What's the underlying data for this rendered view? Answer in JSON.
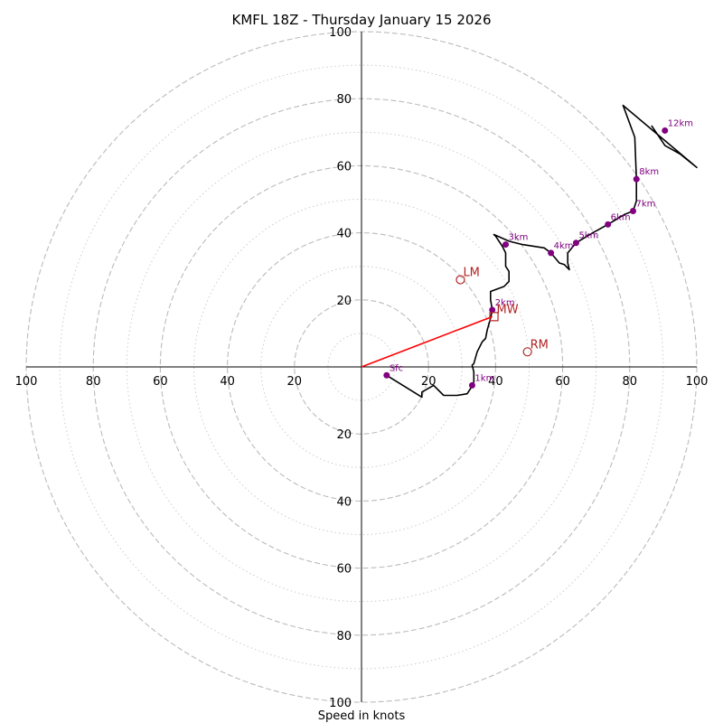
{
  "chart_data": {
    "type": "hodograph",
    "title": "KMFL 18Z - Thursday January 15 2026",
    "xlabel": "Speed in knots",
    "axis_range": [
      -100,
      100
    ],
    "ring_major": [
      20,
      40,
      60,
      80,
      100
    ],
    "ring_minor": [
      10,
      30,
      50,
      70,
      90
    ],
    "tick_labels": {
      "x_right": [
        "20",
        "40",
        "60",
        "80",
        "100"
      ],
      "x_left": [
        "100",
        "80",
        "60",
        "40",
        "20"
      ],
      "y_up": [
        "20",
        "40",
        "60",
        "80",
        "100"
      ],
      "y_down": [
        "20",
        "40",
        "60",
        "80",
        "100"
      ]
    },
    "colors": {
      "trace": "#000000",
      "height_marker": "#800080",
      "motion_marker": "#b22222",
      "shear_vector": "#ff0000",
      "grid": "#bbbbbb"
    },
    "wind_trace": [
      [
        7.5,
        -2.5
      ],
      [
        18,
        -9
      ],
      [
        18,
        -7.5
      ],
      [
        21.5,
        -5.5
      ],
      [
        24.5,
        -8.5
      ],
      [
        28.5,
        -8.5
      ],
      [
        31.5,
        -8
      ],
      [
        32.5,
        -6.5
      ],
      [
        33.5,
        -4.5
      ],
      [
        33.5,
        -1.5
      ],
      [
        33,
        0.5
      ],
      [
        33.5,
        1
      ],
      [
        34.5,
        4.5
      ],
      [
        36,
        7.5
      ],
      [
        37,
        8.5
      ],
      [
        37.5,
        11
      ],
      [
        38.5,
        14.5
      ],
      [
        39,
        17
      ],
      [
        38.5,
        20
      ],
      [
        38.5,
        22.5
      ],
      [
        42.5,
        24
      ],
      [
        44,
        25.5
      ],
      [
        44,
        28.5
      ],
      [
        43,
        30
      ],
      [
        43,
        34
      ],
      [
        42,
        36
      ],
      [
        40,
        39
      ],
      [
        39.5,
        39.5
      ],
      [
        44,
        37.5
      ],
      [
        48,
        36.5
      ],
      [
        54.5,
        35.5
      ],
      [
        56.5,
        34
      ],
      [
        59,
        31
      ],
      [
        60.5,
        30.5
      ],
      [
        62,
        29
      ],
      [
        61.5,
        31
      ],
      [
        61.5,
        34
      ],
      [
        64,
        37
      ],
      [
        69,
        40
      ],
      [
        73.5,
        42.5
      ],
      [
        78.5,
        45.5
      ],
      [
        81,
        46.5
      ],
      [
        82,
        49.5
      ],
      [
        82,
        56
      ],
      [
        81.5,
        68.5
      ],
      [
        78,
        78
      ],
      [
        100,
        59.5
      ],
      [
        95,
        63.5
      ],
      [
        90.5,
        66
      ],
      [
        87.5,
        70.5
      ],
      [
        86.5,
        72
      ]
    ],
    "height_markers": [
      {
        "label": "Sfc",
        "u": 7.5,
        "v": -2.5
      },
      {
        "label": "1km",
        "u": 33,
        "v": -5.5
      },
      {
        "label": "2km",
        "u": 39,
        "v": 17
      },
      {
        "label": "3km",
        "u": 43,
        "v": 36.5
      },
      {
        "label": "4km",
        "u": 56.5,
        "v": 34
      },
      {
        "label": "5km",
        "u": 64,
        "v": 37
      },
      {
        "label": "6km",
        "u": 73.5,
        "v": 42.5
      },
      {
        "label": "7km",
        "u": 81,
        "v": 46.5
      },
      {
        "label": "8km",
        "u": 82,
        "v": 56
      },
      {
        "label": "12km",
        "u": 90.5,
        "v": 70.5
      }
    ],
    "storm_motions": [
      {
        "label": "LM",
        "u": 29.5,
        "v": 26,
        "shape": "circle"
      },
      {
        "label": "MW",
        "u": 39.5,
        "v": 15,
        "shape": "square"
      },
      {
        "label": "RM",
        "u": 49.5,
        "v": 4.5,
        "shape": "circle"
      }
    ],
    "shear_vector": {
      "from": [
        0,
        0
      ],
      "to": [
        39,
        15
      ]
    }
  }
}
